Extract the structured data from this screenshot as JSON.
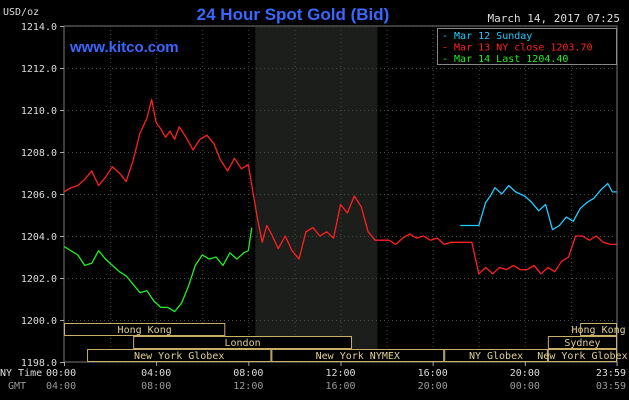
{
  "header": {
    "title": "24 Hour Spot Gold (Bid)",
    "unit": "USD/oz",
    "date": "March 14, 2017 07:25",
    "site": "www.kitco.com"
  },
  "legend": [
    {
      "label": "Mar 12 Sunday",
      "color": "#22ccff"
    },
    {
      "label": "Mar 13 NY close 1203.70",
      "color": "#ff2020"
    },
    {
      "label": "Mar 14 Last 1204.40",
      "color": "#22ee22"
    }
  ],
  "sessions": [
    {
      "label": "Hong Kong",
      "start": 0.0,
      "end": 7.0,
      "row": 0
    },
    {
      "label": "London",
      "start": 3.0,
      "end": 12.5,
      "row": 1
    },
    {
      "label": "New York Globex",
      "start": 1.0,
      "end": 9.0,
      "row": 2
    },
    {
      "label": "New York NYMEX",
      "start": 9.0,
      "end": 16.5,
      "row": 2
    },
    {
      "label": "NY Globex",
      "start": 16.5,
      "end": 21.0,
      "row": 2
    },
    {
      "label": "Hong Kong",
      "start": 22.4,
      "end": 24.0,
      "row": 0
    },
    {
      "label": "Sydney",
      "start": 21.0,
      "end": 24.0,
      "row": 1
    },
    {
      "label": "New York Globex",
      "start": 21.0,
      "end": 24.0,
      "row": 2
    }
  ],
  "axis_labels": {
    "row1_name": "NY Time",
    "row2_name": "GMT",
    "ny_time": [
      "00:00",
      "04:00",
      "08:00",
      "12:00",
      "16:00",
      "20:00",
      "23:59"
    ],
    "gmt": [
      "04:00",
      "08:00",
      "12:00",
      "16:00",
      "20:00",
      "00:00",
      "03:59"
    ]
  },
  "chart_data": {
    "type": "line",
    "title": "24 Hour Spot Gold (Bid)",
    "ylabel": "USD/oz",
    "xlabel": "NY Time",
    "xlim": [
      0,
      24
    ],
    "ylim": [
      1198.0,
      1214.0
    ],
    "yticks": [
      "1214.0",
      "1212.0",
      "1210.0",
      "1208.0",
      "1206.0",
      "1204.0",
      "1202.0",
      "1200.0",
      "1198.0"
    ],
    "ytick_values": [
      1214,
      1212,
      1210,
      1208,
      1206,
      1204,
      1202,
      1200,
      1198
    ],
    "xticks": [
      0,
      4,
      8,
      12,
      16,
      20,
      23.98
    ],
    "shaded_region": [
      8.3,
      13.6
    ],
    "grid": true,
    "series": [
      {
        "name": "Mar 12 Sunday",
        "color": "#22ccff",
        "x": [
          17.2,
          17.5,
          17.7,
          18.0,
          18.3,
          18.5,
          18.7,
          19.0,
          19.3,
          19.6,
          20.0,
          20.3,
          20.6,
          20.9,
          21.2,
          21.5,
          21.8,
          22.1,
          22.4,
          22.7,
          23.0,
          23.3,
          23.6,
          23.8,
          23.98
        ],
        "y": [
          1204.5,
          1204.5,
          1204.5,
          1204.5,
          1205.6,
          1205.9,
          1206.3,
          1206.0,
          1206.4,
          1206.1,
          1205.9,
          1205.6,
          1205.2,
          1205.5,
          1204.3,
          1204.5,
          1204.9,
          1204.7,
          1205.3,
          1205.6,
          1205.8,
          1206.2,
          1206.5,
          1206.1,
          1206.1
        ]
      },
      {
        "name": "Mar 13 NY close 1203.70",
        "color": "#ff2020",
        "x": [
          0.0,
          0.3,
          0.6,
          0.9,
          1.2,
          1.5,
          1.8,
          2.1,
          2.4,
          2.7,
          3.0,
          3.3,
          3.6,
          3.8,
          4.0,
          4.2,
          4.4,
          4.6,
          4.8,
          5.0,
          5.3,
          5.6,
          5.9,
          6.2,
          6.5,
          6.8,
          7.1,
          7.4,
          7.7,
          8.0,
          8.2,
          8.4,
          8.6,
          8.8,
          9.0,
          9.3,
          9.6,
          9.9,
          10.2,
          10.5,
          10.8,
          11.1,
          11.4,
          11.7,
          12.0,
          12.3,
          12.6,
          12.9,
          13.2,
          13.5,
          13.8,
          14.1,
          14.4,
          14.7,
          15.0,
          15.3,
          15.6,
          15.9,
          16.2,
          16.5,
          16.8,
          17.1,
          17.4,
          17.7,
          18.0,
          18.3,
          18.6,
          18.9,
          19.2,
          19.5,
          19.8,
          20.1,
          20.4,
          20.7,
          21.0,
          21.3,
          21.6,
          21.9,
          22.2,
          22.5,
          22.8,
          23.1,
          23.4,
          23.7,
          23.98
        ],
        "y": [
          1206.1,
          1206.3,
          1206.4,
          1206.7,
          1207.1,
          1206.4,
          1206.8,
          1207.3,
          1207.0,
          1206.6,
          1207.6,
          1208.9,
          1209.6,
          1210.5,
          1209.4,
          1209.1,
          1208.7,
          1209.0,
          1208.6,
          1209.2,
          1208.7,
          1208.1,
          1208.6,
          1208.8,
          1208.4,
          1207.6,
          1207.1,
          1207.7,
          1207.2,
          1207.4,
          1206.1,
          1204.8,
          1203.7,
          1204.5,
          1204.1,
          1203.4,
          1204.0,
          1203.3,
          1202.9,
          1204.2,
          1204.4,
          1204.0,
          1204.2,
          1203.9,
          1205.5,
          1205.1,
          1205.9,
          1205.4,
          1204.2,
          1203.8,
          1203.8,
          1203.8,
          1203.6,
          1203.9,
          1204.1,
          1203.9,
          1204.0,
          1203.8,
          1203.9,
          1203.6,
          1203.7,
          1203.7,
          1203.7,
          1203.7,
          1202.2,
          1202.5,
          1202.2,
          1202.5,
          1202.4,
          1202.6,
          1202.4,
          1202.4,
          1202.6,
          1202.2,
          1202.5,
          1202.3,
          1202.8,
          1203.0,
          1204.0,
          1204.0,
          1203.8,
          1204.0,
          1203.7,
          1203.6,
          1203.6
        ]
      },
      {
        "name": "Mar 14 Last 1204.40",
        "color": "#22ee22",
        "x": [
          0.0,
          0.3,
          0.6,
          0.9,
          1.2,
          1.5,
          1.8,
          2.1,
          2.4,
          2.7,
          3.0,
          3.3,
          3.6,
          3.9,
          4.2,
          4.5,
          4.8,
          5.1,
          5.4,
          5.7,
          6.0,
          6.3,
          6.6,
          6.9,
          7.2,
          7.5,
          7.8,
          8.0,
          8.15
        ],
        "y": [
          1203.5,
          1203.3,
          1203.1,
          1202.6,
          1202.7,
          1203.3,
          1202.9,
          1202.6,
          1202.3,
          1202.1,
          1201.7,
          1201.3,
          1201.4,
          1200.9,
          1200.6,
          1200.6,
          1200.4,
          1200.8,
          1201.6,
          1202.6,
          1203.1,
          1202.9,
          1203.0,
          1202.6,
          1203.2,
          1202.9,
          1203.2,
          1203.3,
          1204.4
        ]
      }
    ]
  }
}
